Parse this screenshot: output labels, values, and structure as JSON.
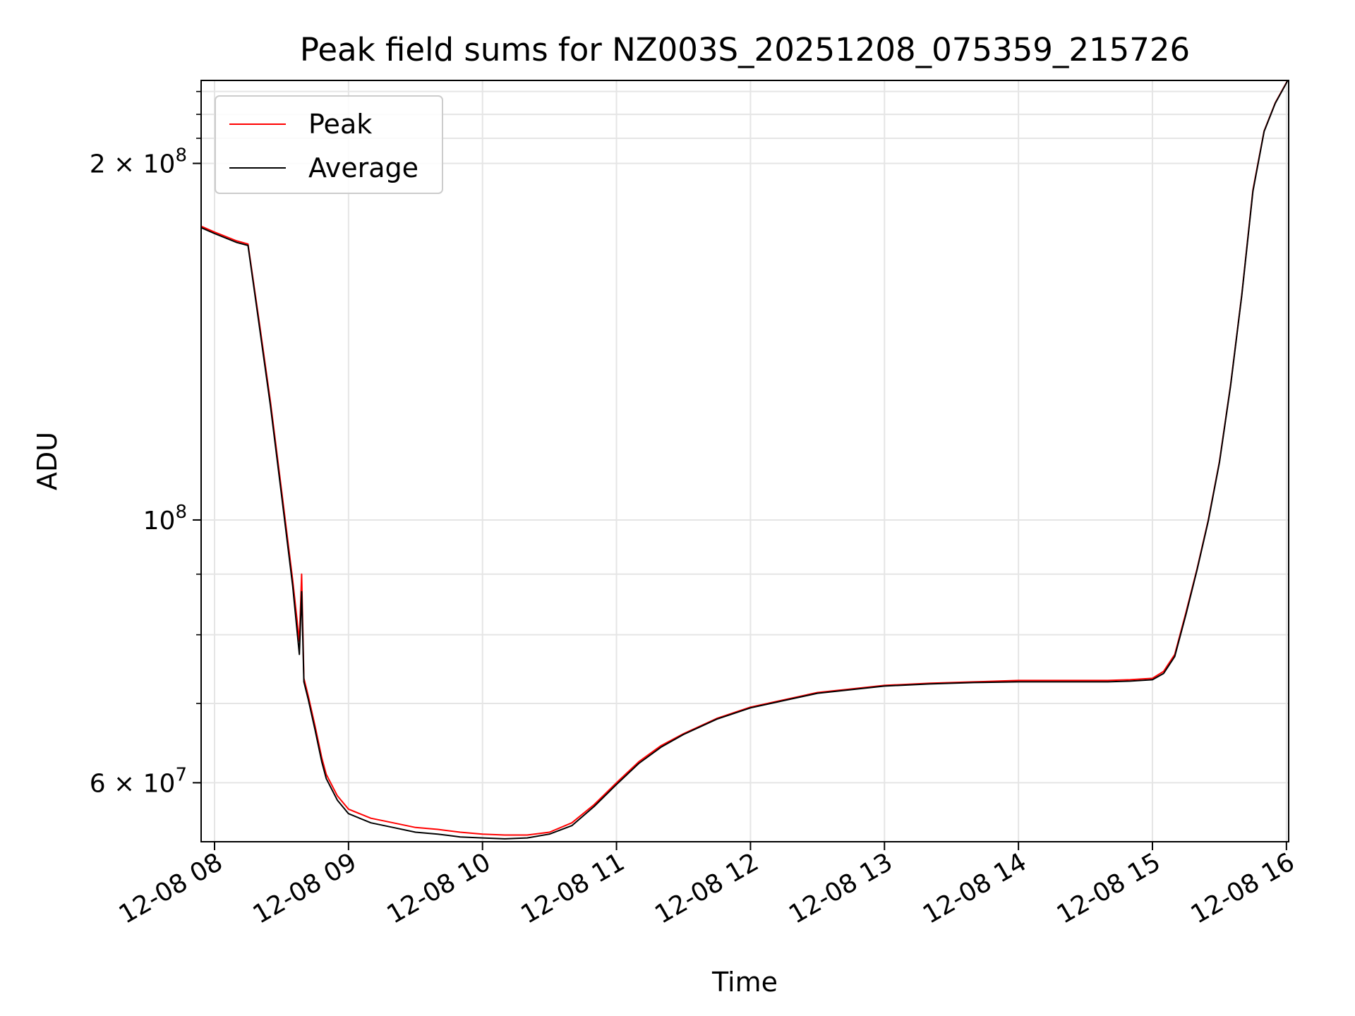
{
  "chart_data": {
    "type": "line",
    "title": "Peak field sums for NZ003S_20251208_075359_215726",
    "xlabel": "Time",
    "ylabel": "ADU",
    "yscale": "log",
    "xlim": [
      "2025-12-08 07:54",
      "2025-12-08 16:01"
    ],
    "ylim": [
      53500000,
      235000000
    ],
    "grid": true,
    "legend": "upper-left",
    "x_ticks": [
      "12-08 08",
      "12-08 09",
      "12-08 10",
      "12-08 11",
      "12-08 12",
      "12-08 13",
      "12-08 14",
      "12-08 15",
      "12-08 16"
    ],
    "y_ticks": [
      {
        "value": 60000000,
        "mantissa": "6",
        "exponent": "7"
      },
      {
        "value": 100000000,
        "mantissa": "",
        "exponent": "8"
      },
      {
        "value": 200000000,
        "mantissa": "2",
        "exponent": "8"
      }
    ],
    "series": [
      {
        "name": "Peak",
        "color": "#ff0000",
        "x": [
          "2025-12-08 07:54",
          "2025-12-08 08:00",
          "2025-12-08 08:10",
          "2025-12-08 08:15",
          "2025-12-08 08:20",
          "2025-12-08 08:25",
          "2025-12-08 08:30",
          "2025-12-08 08:35",
          "2025-12-08 08:38",
          "2025-12-08 08:39",
          "2025-12-08 08:40",
          "2025-12-08 08:42",
          "2025-12-08 08:45",
          "2025-12-08 08:48",
          "2025-12-08 08:50",
          "2025-12-08 08:55",
          "2025-12-08 09:00",
          "2025-12-08 09:10",
          "2025-12-08 09:20",
          "2025-12-08 09:30",
          "2025-12-08 09:40",
          "2025-12-08 09:50",
          "2025-12-08 10:00",
          "2025-12-08 10:10",
          "2025-12-08 10:20",
          "2025-12-08 10:30",
          "2025-12-08 10:40",
          "2025-12-08 10:50",
          "2025-12-08 11:00",
          "2025-12-08 11:10",
          "2025-12-08 11:20",
          "2025-12-08 11:30",
          "2025-12-08 11:45",
          "2025-12-08 12:00",
          "2025-12-08 12:15",
          "2025-12-08 12:30",
          "2025-12-08 12:45",
          "2025-12-08 13:00",
          "2025-12-08 13:20",
          "2025-12-08 13:40",
          "2025-12-08 14:00",
          "2025-12-08 14:20",
          "2025-12-08 14:40",
          "2025-12-08 14:50",
          "2025-12-08 15:00",
          "2025-12-08 15:05",
          "2025-12-08 15:10",
          "2025-12-08 15:15",
          "2025-12-08 15:20",
          "2025-12-08 15:25",
          "2025-12-08 15:30",
          "2025-12-08 15:35",
          "2025-12-08 15:40",
          "2025-12-08 15:45",
          "2025-12-08 15:50",
          "2025-12-08 15:55",
          "2025-12-08 16:00",
          "2025-12-08 16:01"
        ],
        "y": [
          177000000,
          175000000,
          172000000,
          171000000,
          147000000,
          126000000,
          106000000,
          89000000,
          79000000,
          90000000,
          73500000,
          71000000,
          67000000,
          63000000,
          61000000,
          58500000,
          57000000,
          56000000,
          55500000,
          55000000,
          54800000,
          54500000,
          54300000,
          54200000,
          54200000,
          54500000,
          55500000,
          57500000,
          60000000,
          62500000,
          64500000,
          66000000,
          68000000,
          69500000,
          70500000,
          71500000,
          72000000,
          72500000,
          72800000,
          73000000,
          73200000,
          73200000,
          73200000,
          73300000,
          73500000,
          74500000,
          77000000,
          83500000,
          91000000,
          100000000,
          112000000,
          130000000,
          155000000,
          190000000,
          213000000,
          225000000,
          234000000,
          236000000
        ]
      },
      {
        "name": "Average",
        "color": "#000000",
        "x": [
          "2025-12-08 07:54",
          "2025-12-08 08:00",
          "2025-12-08 08:10",
          "2025-12-08 08:15",
          "2025-12-08 08:20",
          "2025-12-08 08:25",
          "2025-12-08 08:30",
          "2025-12-08 08:35",
          "2025-12-08 08:38",
          "2025-12-08 08:39",
          "2025-12-08 08:40",
          "2025-12-08 08:42",
          "2025-12-08 08:45",
          "2025-12-08 08:48",
          "2025-12-08 08:50",
          "2025-12-08 08:55",
          "2025-12-08 09:00",
          "2025-12-08 09:10",
          "2025-12-08 09:20",
          "2025-12-08 09:30",
          "2025-12-08 09:40",
          "2025-12-08 09:50",
          "2025-12-08 10:00",
          "2025-12-08 10:10",
          "2025-12-08 10:20",
          "2025-12-08 10:30",
          "2025-12-08 10:40",
          "2025-12-08 10:50",
          "2025-12-08 11:00",
          "2025-12-08 11:10",
          "2025-12-08 11:20",
          "2025-12-08 11:30",
          "2025-12-08 11:45",
          "2025-12-08 12:00",
          "2025-12-08 12:15",
          "2025-12-08 12:30",
          "2025-12-08 12:45",
          "2025-12-08 13:00",
          "2025-12-08 13:20",
          "2025-12-08 13:40",
          "2025-12-08 14:00",
          "2025-12-08 14:20",
          "2025-12-08 14:40",
          "2025-12-08 14:50",
          "2025-12-08 15:00",
          "2025-12-08 15:05",
          "2025-12-08 15:10",
          "2025-12-08 15:15",
          "2025-12-08 15:20",
          "2025-12-08 15:25",
          "2025-12-08 15:30",
          "2025-12-08 15:35",
          "2025-12-08 15:40",
          "2025-12-08 15:45",
          "2025-12-08 15:50",
          "2025-12-08 15:55",
          "2025-12-08 16:00",
          "2025-12-08 16:01"
        ],
        "y": [
          176500000,
          174500000,
          171500000,
          170500000,
          146000000,
          125000000,
          105000000,
          88000000,
          77000000,
          87000000,
          73000000,
          70500000,
          66500000,
          62500000,
          60500000,
          58000000,
          56500000,
          55500000,
          55000000,
          54500000,
          54300000,
          54000000,
          53900000,
          53800000,
          53900000,
          54300000,
          55200000,
          57300000,
          59800000,
          62300000,
          64300000,
          65900000,
          67900000,
          69400000,
          70400000,
          71400000,
          71900000,
          72400000,
          72700000,
          72900000,
          73000000,
          73000000,
          73000000,
          73100000,
          73300000,
          74200000,
          76700000,
          83200000,
          90800000,
          99800000,
          111800000,
          129800000,
          154800000,
          189500000,
          212800000,
          224800000,
          233800000,
          236000000
        ]
      }
    ]
  }
}
